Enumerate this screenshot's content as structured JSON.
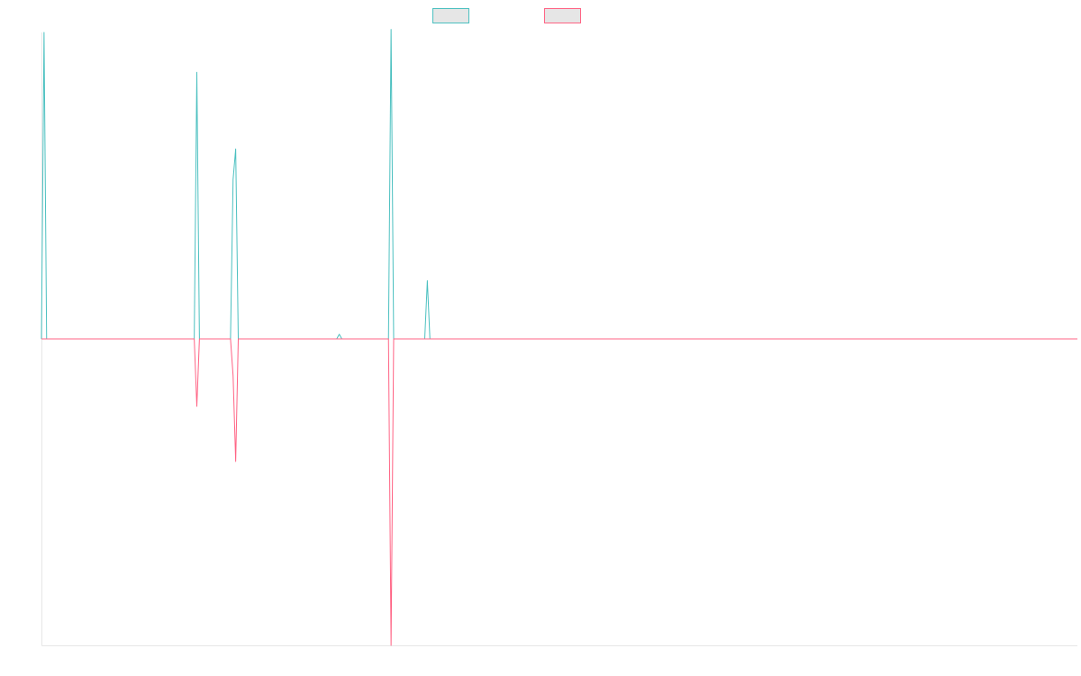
{
  "chart_data": {
    "type": "line",
    "title": "",
    "xlabel": "",
    "ylabel": "",
    "grid": false,
    "legend_position": "top-center",
    "xlim": [
      0,
      400
    ],
    "ylim": [
      -100,
      100
    ],
    "series": [
      {
        "color": "#4bc0c0",
        "legend_fill": "#e6e6e6",
        "points": [
          [
            0,
            0
          ],
          [
            1,
            100
          ],
          [
            2,
            0
          ],
          [
            59,
            0
          ],
          [
            60,
            87
          ],
          [
            61,
            0
          ],
          [
            73,
            0
          ],
          [
            74,
            52
          ],
          [
            75,
            62
          ],
          [
            76,
            0
          ],
          [
            114,
            0
          ],
          [
            115,
            1.5
          ],
          [
            116,
            0
          ],
          [
            134,
            0
          ],
          [
            135,
            101
          ],
          [
            136,
            0
          ],
          [
            148,
            0
          ],
          [
            149,
            19
          ],
          [
            150,
            0
          ],
          [
            400,
            0
          ]
        ]
      },
      {
        "color": "#ff6384",
        "legend_fill": "#e6e6e6",
        "points": [
          [
            0,
            0
          ],
          [
            59,
            0
          ],
          [
            60,
            -22
          ],
          [
            61,
            0
          ],
          [
            73,
            0
          ],
          [
            74,
            -12
          ],
          [
            75,
            -40
          ],
          [
            76,
            0
          ],
          [
            134,
            0
          ],
          [
            135,
            -100
          ],
          [
            136,
            0
          ],
          [
            400,
            0
          ]
        ]
      }
    ]
  }
}
